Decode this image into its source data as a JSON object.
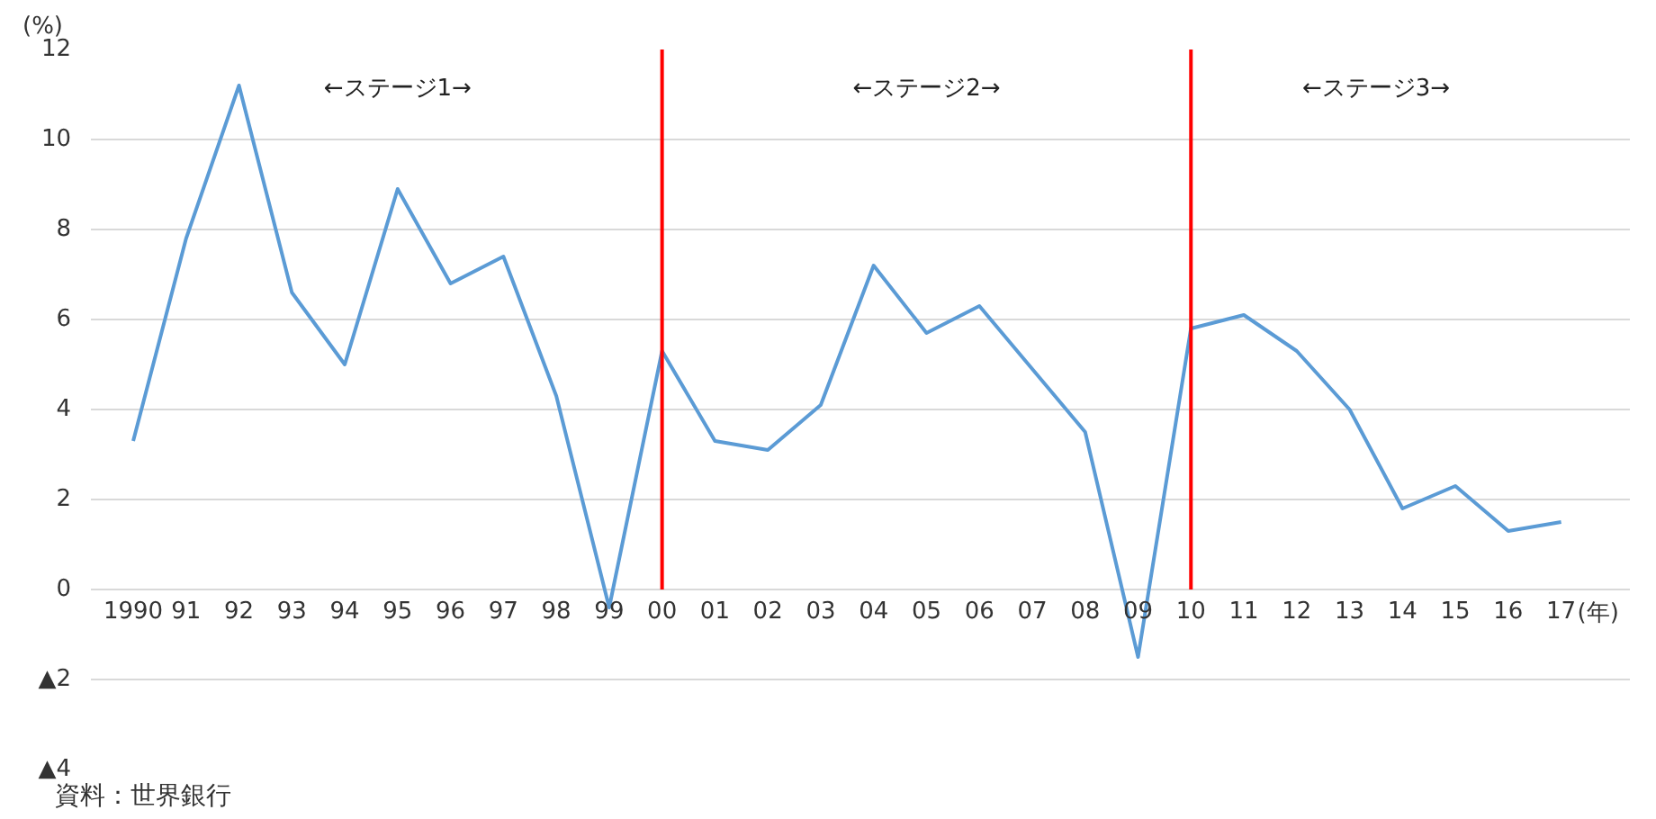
{
  "chart_data": {
    "type": "line",
    "xlabel": "(年)",
    "ylabel": "(%)",
    "categories": [
      "1990",
      "91",
      "92",
      "93",
      "94",
      "95",
      "96",
      "97",
      "98",
      "99",
      "00",
      "01",
      "02",
      "03",
      "04",
      "05",
      "06",
      "07",
      "08",
      "09",
      "10",
      "11",
      "12",
      "13",
      "14",
      "15",
      "16",
      "17"
    ],
    "series": [
      {
        "color": "#5b9bd5",
        "values": [
          3.3,
          7.8,
          11.2,
          6.6,
          5.0,
          8.9,
          6.8,
          7.4,
          4.3,
          -0.4,
          5.3,
          3.3,
          3.1,
          4.1,
          7.2,
          5.7,
          6.3,
          4.9,
          3.5,
          -1.5,
          5.8,
          6.1,
          5.3,
          4.0,
          1.8,
          2.3,
          1.3,
          1.5
        ]
      }
    ],
    "ylim": [
      -4,
      12
    ],
    "yticks": [
      {
        "value": -4,
        "label": "▲4"
      },
      {
        "value": -2,
        "label": "▲2"
      },
      0,
      2,
      4,
      6,
      8,
      10,
      12
    ],
    "grid": "y",
    "marker": "none",
    "line_style": "solid",
    "ref_lines": [
      {
        "axis": "x",
        "value": "00",
        "color": "#ff0000"
      },
      {
        "axis": "x",
        "value": "10",
        "color": "#ff0000"
      }
    ],
    "annotations": [
      "←ステージ1→",
      "←ステージ2→",
      "←ステージ3→",
      "資料：世界銀行"
    ]
  }
}
